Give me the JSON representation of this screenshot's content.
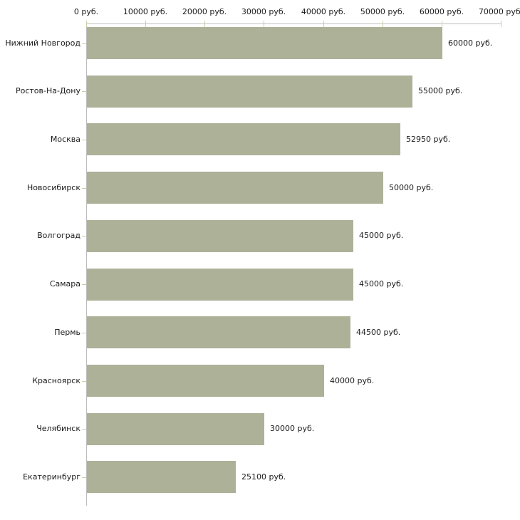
{
  "chart_data": {
    "type": "bar",
    "orientation": "horizontal",
    "title": "",
    "xlabel": "",
    "ylabel": "",
    "categories": [
      "Нижний Новгород",
      "Ростов-На-Дону",
      "Москва",
      "Новосибирск",
      "Волгоград",
      "Самара",
      "Пермь",
      "Красноярск",
      "Челябинск",
      "Екатеринбург"
    ],
    "values": [
      60000,
      55000,
      52950,
      50000,
      45000,
      45000,
      44500,
      40000,
      30000,
      25100
    ],
    "value_labels": [
      "60000 руб.",
      "55000 руб.",
      "52950 руб.",
      "50000 руб.",
      "45000 руб.",
      "45000 руб.",
      "44500 руб.",
      "40000 руб.",
      "30000 руб.",
      "25100 руб."
    ],
    "x_tick_values": [
      0,
      10000,
      20000,
      30000,
      40000,
      50000,
      60000,
      70000
    ],
    "x_tick_labels": [
      "0 руб.",
      "10000 руб.",
      "20000 руб.",
      "30000 руб.",
      "40000 руб.",
      "50000 руб.",
      "60000 руб.",
      "70000 руб."
    ],
    "xlim": [
      0,
      70000
    ],
    "grid": false,
    "legend": false,
    "axis_position": "top",
    "colors": {
      "bar": "#acb198",
      "axis": "#bdbdbd",
      "tick": "#cccca3",
      "text": "#1a1a1a",
      "background": "#ffffff"
    }
  }
}
